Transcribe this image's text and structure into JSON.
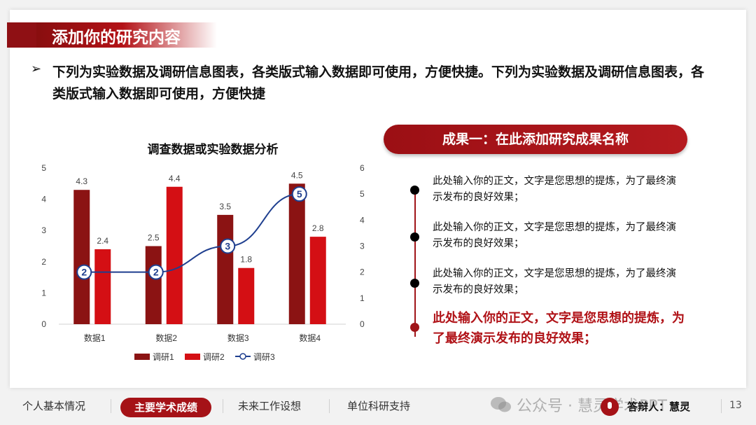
{
  "slide": {
    "title": "添加你的研究内容",
    "bullet": "下列为实验数据及调研信息图表，各类版式输入数据即可使用，方便快捷。下列为实验数据及调研信息图表，各类版式输入数据即可使用，方便快捷"
  },
  "chart_data": {
    "type": "bar",
    "title": "调查数据或实验数据分析",
    "categories": [
      "数据1",
      "数据2",
      "数据3",
      "数据4"
    ],
    "series": [
      {
        "name": "调研1",
        "type": "bar",
        "axis": "left",
        "values": [
          4.3,
          2.5,
          3.5,
          4.5
        ],
        "color": "#8b1313"
      },
      {
        "name": "调研2",
        "type": "bar",
        "axis": "left",
        "values": [
          2.4,
          4.4,
          1.8,
          2.8
        ],
        "color": "#d40f14"
      },
      {
        "name": "调研3",
        "type": "line",
        "axis": "right",
        "values": [
          2,
          2,
          3,
          5
        ],
        "color": "#1f3f8f"
      }
    ],
    "ylim_left": [
      0,
      5
    ],
    "ylim_right": [
      0,
      6
    ],
    "left_ticks": [
      "0",
      "1",
      "2",
      "3",
      "4",
      "5"
    ],
    "right_ticks": [
      "0",
      "1",
      "2",
      "3",
      "4",
      "5",
      "6"
    ],
    "grid": false,
    "legend_position": "bottom"
  },
  "result": {
    "title": "成果一：在此添加研究成果名称",
    "items": [
      "此处输入你的正文，文字是您思想的提炼，为了最终演示发布的良好效果；",
      "此处输入你的正文，文字是您思想的提炼，为了最终演示发布的良好效果；",
      "此处输入你的正文，文字是您思想的提炼，为了最终演示发布的良好效果；"
    ],
    "highlight": "此处输入你的正文，文字是您思想的提炼，为了最终演示发布的良好效果；"
  },
  "footer": {
    "nav": [
      "个人基本情况",
      "主要学术成绩",
      "未来工作设想",
      "单位科研支持"
    ],
    "active_index": 1,
    "watermark": "公众号 · 慧灵学术PPT",
    "defender": "答辩人：慧灵",
    "page": "13"
  },
  "colors": {
    "accent": "#a51217",
    "dark_red": "#8b1313",
    "bright_red": "#d40f14",
    "line_blue": "#1f3f8f"
  }
}
